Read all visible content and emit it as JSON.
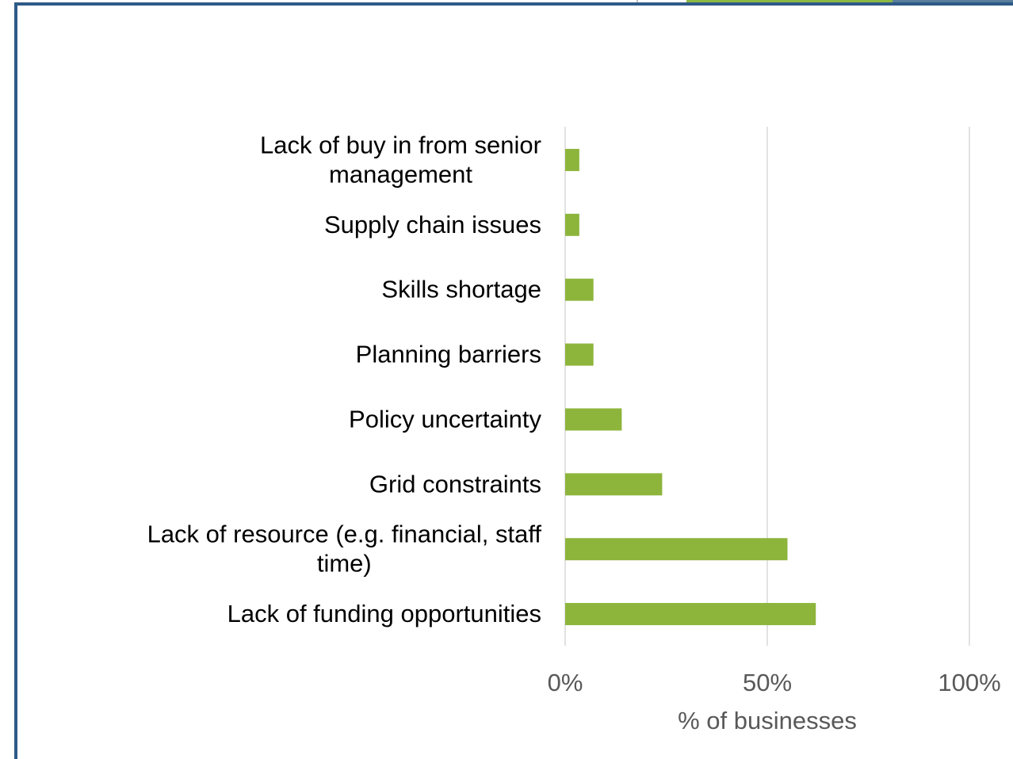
{
  "chart_data": {
    "type": "bar",
    "orientation": "horizontal",
    "title": "",
    "xlabel": "% of businesses",
    "ylabel": "",
    "xlim": [
      0,
      100
    ],
    "x_ticks": [
      0,
      50,
      100
    ],
    "x_tick_labels": [
      "0%",
      "50%",
      "100%"
    ],
    "grid": true,
    "legend": "none",
    "bar_color": "#8db53c",
    "categories": [
      [
        "Lack of buy in from senior",
        "management"
      ],
      [
        "Supply chain issues"
      ],
      [
        "Skills shortage"
      ],
      [
        "Planning barriers"
      ],
      [
        "Policy uncertainty"
      ],
      [
        "Grid constraints"
      ],
      [
        "Lack of resource (e.g. financial, staff",
        "time)"
      ],
      [
        "Lack of funding opportunities"
      ]
    ],
    "values": [
      3.5,
      3.5,
      7,
      7,
      14,
      24,
      55,
      62
    ]
  }
}
